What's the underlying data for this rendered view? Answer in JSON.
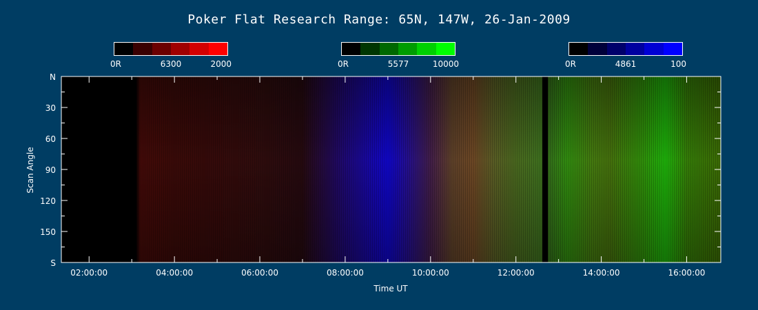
{
  "title": "Poker Flat Research Range: 65N, 147W, 26-Jan-2009",
  "colorbars": [
    {
      "name": "6300",
      "labels": [
        "0R",
        "6300",
        "2000"
      ],
      "colors": [
        "#000000",
        "#3a0000",
        "#6b0000",
        "#a00000",
        "#d40000",
        "#ff0000"
      ]
    },
    {
      "name": "5577",
      "labels": [
        "0R",
        "5577",
        "10000"
      ],
      "colors": [
        "#000000",
        "#003600",
        "#006800",
        "#009c00",
        "#00d000",
        "#00ff00"
      ]
    },
    {
      "name": "4861",
      "labels": [
        "0R",
        "4861",
        "100"
      ],
      "colors": [
        "#000000",
        "#00003a",
        "#00006b",
        "#0000a0",
        "#0000d4",
        "#0000ff"
      ]
    }
  ],
  "chart_data": {
    "type": "heatmap",
    "title": "Poker Flat Research Range: 65N, 147W, 26-Jan-2009",
    "xlabel": "Time UT",
    "ylabel": "Scan Angle",
    "x_ticks": [
      "02:00:00",
      "04:00:00",
      "06:00:00",
      "08:00:00",
      "10:00:00",
      "12:00:00",
      "14:00:00",
      "16:00:00"
    ],
    "x_tick_hours": [
      2,
      4,
      6,
      8,
      10,
      12,
      14,
      16
    ],
    "xlim_hours": [
      1.35,
      16.8
    ],
    "y_ticks": [
      "N",
      "30",
      "60",
      "90",
      "120",
      "150",
      "S"
    ],
    "y_tick_values": [
      0,
      30,
      60,
      90,
      120,
      150,
      180
    ],
    "ylim": [
      0,
      180
    ],
    "series": [
      {
        "name": "6300",
        "color": "#ff0000",
        "channel": "red",
        "time_hours": [
          1.35,
          3.1,
          3.2,
          4.0,
          5.0,
          6.0,
          7.0,
          8.0,
          9.0,
          10.0,
          10.5,
          11.0,
          11.5,
          12.0,
          12.6,
          12.8,
          13.2,
          13.8,
          14.2,
          15.0,
          15.5,
          16.0,
          16.8
        ],
        "intensity": [
          0,
          0,
          0.28,
          0.24,
          0.22,
          0.2,
          0.16,
          0.22,
          0.3,
          0.42,
          0.62,
          0.72,
          0.68,
          0.6,
          0.55,
          0.42,
          0.48,
          0.56,
          0.52,
          0.45,
          0.42,
          0.42,
          0.4
        ]
      },
      {
        "name": "5577",
        "color": "#00ff00",
        "channel": "green",
        "time_hours": [
          1.35,
          3.1,
          3.2,
          4.0,
          5.0,
          6.0,
          7.0,
          8.0,
          9.0,
          10.0,
          10.5,
          11.0,
          11.5,
          12.0,
          12.6,
          12.8,
          13.2,
          13.8,
          14.2,
          15.0,
          15.5,
          16.0,
          16.8
        ],
        "intensity": [
          0,
          0,
          0.04,
          0.04,
          0.04,
          0.05,
          0.04,
          0.06,
          0.1,
          0.16,
          0.3,
          0.32,
          0.42,
          0.46,
          0.5,
          0.48,
          0.58,
          0.5,
          0.46,
          0.58,
          0.72,
          0.5,
          0.42
        ]
      },
      {
        "name": "4861",
        "color": "#0000ff",
        "channel": "blue",
        "time_hours": [
          1.35,
          3.1,
          3.2,
          4.0,
          5.0,
          6.0,
          7.0,
          8.0,
          9.0,
          10.0,
          10.5,
          11.0,
          11.5,
          12.0,
          12.6,
          12.8,
          13.2,
          13.8,
          14.2,
          15.0,
          15.5,
          16.0,
          16.8
        ],
        "intensity": [
          0,
          0,
          0.03,
          0.03,
          0.04,
          0.05,
          0.06,
          0.45,
          0.78,
          0.28,
          0.16,
          0.14,
          0.14,
          0.12,
          0.12,
          0.1,
          0.06,
          0.06,
          0.05,
          0.04,
          0.04,
          0.03,
          0.02
        ]
      }
    ],
    "data_gaps_hours": [
      [
        12.62,
        12.75
      ]
    ]
  }
}
